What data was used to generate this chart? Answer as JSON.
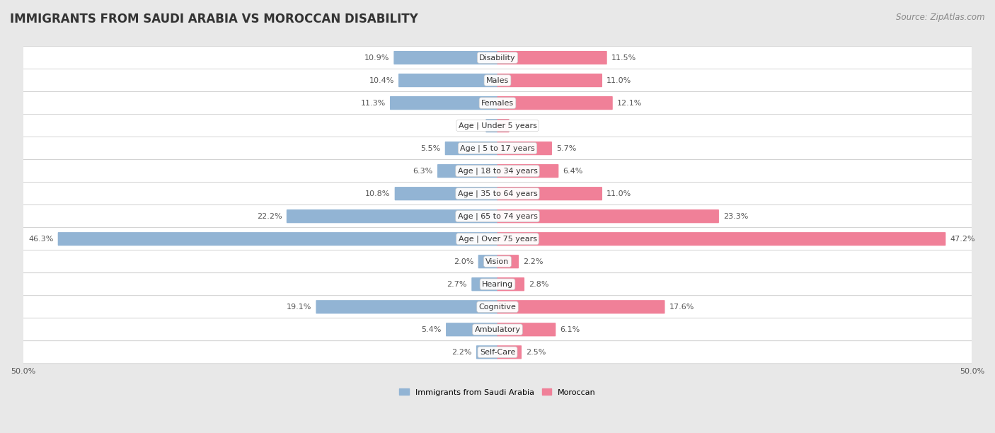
{
  "title": "IMMIGRANTS FROM SAUDI ARABIA VS MOROCCAN DISABILITY",
  "source": "Source: ZipAtlas.com",
  "categories": [
    "Disability",
    "Males",
    "Females",
    "Age | Under 5 years",
    "Age | 5 to 17 years",
    "Age | 18 to 34 years",
    "Age | 35 to 64 years",
    "Age | 65 to 74 years",
    "Age | Over 75 years",
    "Vision",
    "Hearing",
    "Cognitive",
    "Ambulatory",
    "Self-Care"
  ],
  "saudi_values": [
    10.9,
    10.4,
    11.3,
    1.2,
    5.5,
    6.3,
    10.8,
    22.2,
    46.3,
    2.0,
    2.7,
    19.1,
    5.4,
    2.2
  ],
  "moroccan_values": [
    11.5,
    11.0,
    12.1,
    1.2,
    5.7,
    6.4,
    11.0,
    23.3,
    47.2,
    2.2,
    2.8,
    17.6,
    6.1,
    2.5
  ],
  "saudi_color": "#92b4d4",
  "moroccan_color": "#f08098",
  "saudi_label": "Immigrants from Saudi Arabia",
  "moroccan_label": "Moroccan",
  "axis_max": 50.0,
  "background_color": "#e8e8e8",
  "bar_bg_odd": "#f5f5f5",
  "bar_bg_even": "#ebebeb",
  "title_fontsize": 12,
  "source_fontsize": 8.5,
  "label_fontsize": 8,
  "value_fontsize": 8,
  "bar_height": 0.52
}
